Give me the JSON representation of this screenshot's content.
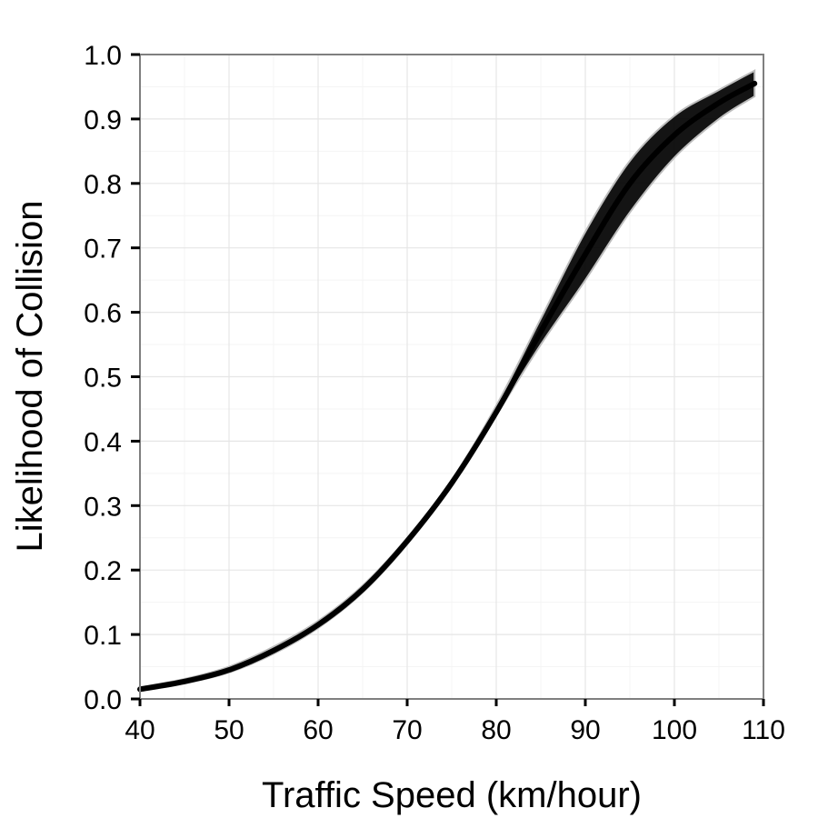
{
  "chart_data": {
    "type": "line",
    "title": "",
    "xlabel": "Traffic Speed (km/hour)",
    "ylabel": "Likelihood of Collision",
    "xlim": [
      40,
      110
    ],
    "ylim": [
      0,
      1
    ],
    "x_ticks": [
      40,
      50,
      60,
      70,
      80,
      90,
      100,
      110
    ],
    "y_ticks": [
      0.0,
      0.1,
      0.2,
      0.3,
      0.4,
      0.5,
      0.6,
      0.7,
      0.8,
      0.9,
      1.0
    ],
    "x_tick_labels": [
      "40",
      "50",
      "60",
      "70",
      "80",
      "90",
      "100",
      "110"
    ],
    "y_tick_labels": [
      "0.0",
      "0.1",
      "0.2",
      "0.3",
      "0.4",
      "0.5",
      "0.6",
      "0.7",
      "0.8",
      "0.9",
      "1.0"
    ],
    "grid": true,
    "legend": "none",
    "line_color": "#000000",
    "series": [
      {
        "x": [
          40,
          45,
          50,
          55,
          60,
          65,
          70,
          75,
          80,
          85,
          90,
          95,
          100,
          105,
          109
        ],
        "y": [
          0.015,
          0.027,
          0.045,
          0.075,
          0.115,
          0.17,
          0.245,
          0.335,
          0.445,
          0.57,
          0.69,
          0.8,
          0.875,
          0.925,
          0.955
        ]
      }
    ],
    "band": {
      "x": [
        40,
        45,
        50,
        55,
        60,
        65,
        70,
        75,
        80,
        85,
        90,
        95,
        100,
        105,
        109
      ],
      "y_low": [
        0.012,
        0.024,
        0.041,
        0.07,
        0.11,
        0.165,
        0.24,
        0.332,
        0.44,
        0.55,
        0.65,
        0.755,
        0.84,
        0.9,
        0.935
      ],
      "y_high": [
        0.018,
        0.031,
        0.05,
        0.081,
        0.121,
        0.176,
        0.25,
        0.34,
        0.455,
        0.59,
        0.725,
        0.835,
        0.905,
        0.945,
        0.975
      ]
    }
  }
}
